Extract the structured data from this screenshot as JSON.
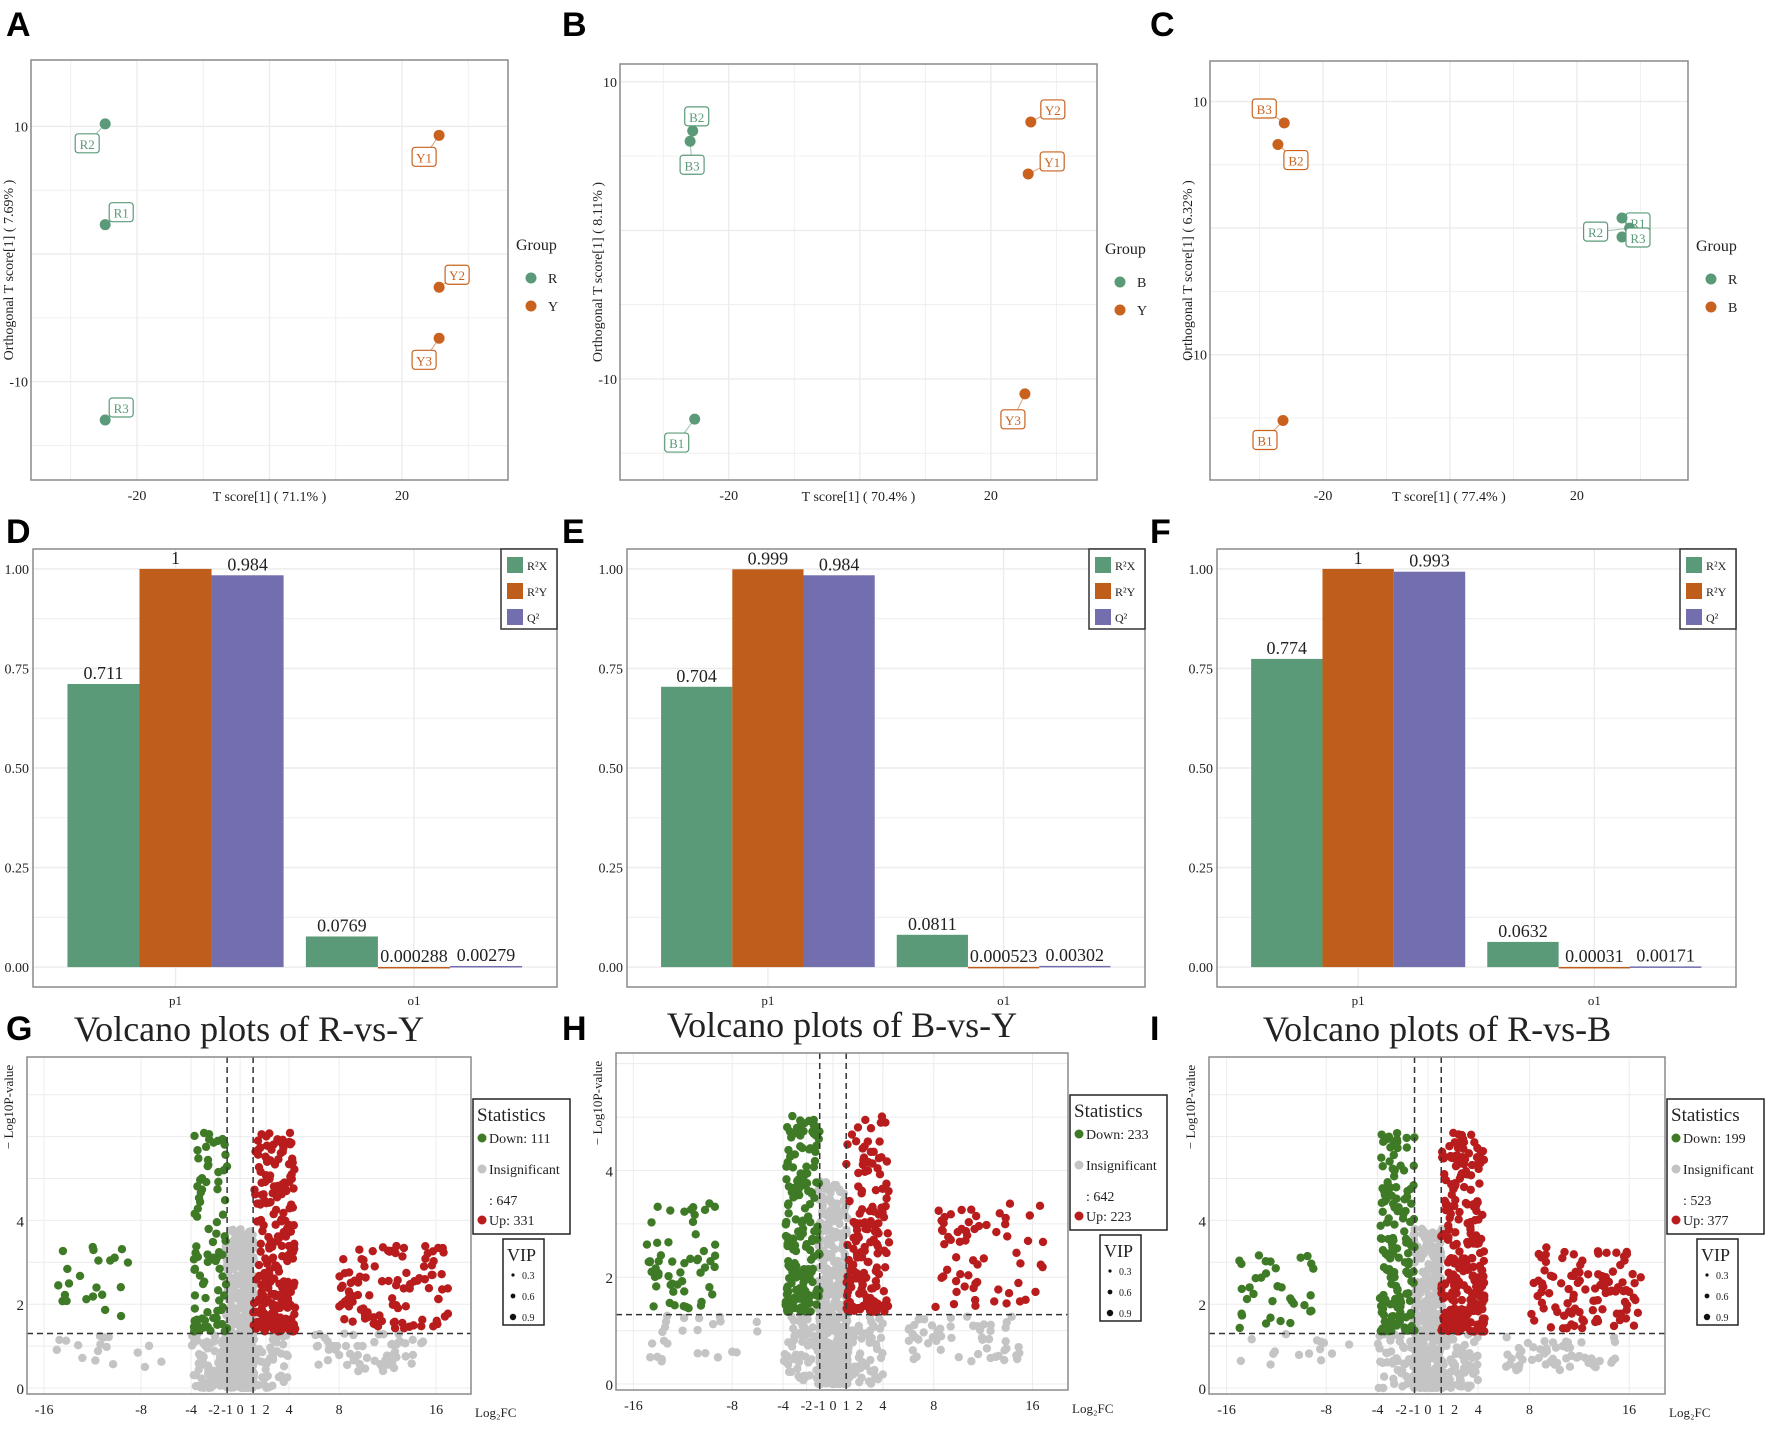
{
  "chart_data": [
    {
      "panel": "A",
      "type": "scatter",
      "xlabel": "T score[1] ( 71.1% )",
      "ylabel": "Orthogonal T score[1] ( 7.69% )",
      "xlim": [
        -36,
        36
      ],
      "ylim": [
        -17.7,
        15.2
      ],
      "xticks": [
        -20,
        20
      ],
      "yticks": [
        10,
        -10
      ],
      "legend_title": "Group",
      "groups": [
        {
          "name": "R",
          "color": "#5a9a78"
        },
        {
          "name": "Y",
          "color": "#c8621e"
        }
      ],
      "points": [
        {
          "label": "R1",
          "group": 0,
          "x": -24.8,
          "y": 2.3
        },
        {
          "label": "R2",
          "group": 0,
          "x": -24.8,
          "y": 10.2
        },
        {
          "label": "R3",
          "group": 0,
          "x": -24.8,
          "y": -13
        },
        {
          "label": "Y1",
          "group": 1,
          "x": 25.6,
          "y": 9.3
        },
        {
          "label": "Y2",
          "group": 1,
          "x": 25.6,
          "y": -2.6
        },
        {
          "label": "Y3",
          "group": 1,
          "x": 25.6,
          "y": -6.6
        }
      ]
    },
    {
      "panel": "B",
      "type": "scatter",
      "xlabel": "T score[1] ( 70.4% )",
      "ylabel": "Orthogonal T score[1] ( 8.11% )",
      "xlim": [
        -36.6,
        36.2
      ],
      "ylim": [
        -16.8,
        11.2
      ],
      "xticks": [
        -20,
        20
      ],
      "yticks": [
        10,
        -10
      ],
      "legend_title": "Group",
      "groups": [
        {
          "name": "B",
          "color": "#5a9a78"
        },
        {
          "name": "Y",
          "color": "#c8621e"
        }
      ],
      "points": [
        {
          "label": "B1",
          "group": 0,
          "x": -25.2,
          "y": -12.7
        },
        {
          "label": "B2",
          "group": 0,
          "x": -25.5,
          "y": 6.7
        },
        {
          "label": "B3",
          "group": 0,
          "x": -25.9,
          "y": 6.0
        },
        {
          "label": "Y1",
          "group": 1,
          "x": 25.7,
          "y": 3.8
        },
        {
          "label": "Y2",
          "group": 1,
          "x": 26.1,
          "y": 7.3
        },
        {
          "label": "Y3",
          "group": 1,
          "x": 25.2,
          "y": -11.0
        }
      ]
    },
    {
      "panel": "C",
      "type": "scatter",
      "xlabel": "T score[1] ( 77.4% )",
      "ylabel": "Orthogonal T score[1] ( 6.32% )",
      "xlim": [
        -37.8,
        37.5
      ],
      "ylim": [
        -19.9,
        13.2
      ],
      "xticks": [
        -20,
        20
      ],
      "yticks": [
        10,
        -10
      ],
      "legend_title": "Group",
      "groups": [
        {
          "name": "R",
          "color": "#5a9a78"
        },
        {
          "name": "B",
          "color": "#c8621e"
        }
      ],
      "points": [
        {
          "label": "B1",
          "group": 1,
          "x": -26.3,
          "y": -15.2
        },
        {
          "label": "B2",
          "group": 1,
          "x": -27.1,
          "y": 6.6
        },
        {
          "label": "B3",
          "group": 1,
          "x": -26.1,
          "y": 8.3
        },
        {
          "label": "R1",
          "group": 0,
          "x": 27.1,
          "y": -0.7
        },
        {
          "label": "R2",
          "group": 0,
          "x": 28.3,
          "y": 0
        },
        {
          "label": "R3",
          "group": 0,
          "x": 27.1,
          "y": 0.8
        }
      ]
    },
    {
      "panel": "D",
      "type": "bar",
      "categories": [
        "p1",
        "o1"
      ],
      "ylim": [
        -0.05,
        1.05
      ],
      "yticks": [
        "0.00",
        "0.25",
        "0.50",
        "0.75",
        "1.00"
      ],
      "series": [
        {
          "name": "R²X",
          "color": "#5a9a78",
          "values": [
            0.711,
            0.0769
          ],
          "labels": [
            "0.711",
            "0.0769"
          ]
        },
        {
          "name": "R²Y",
          "color": "#bf5e1a",
          "values": [
            1,
            0.000288
          ],
          "labels": [
            "1",
            "0.000288"
          ]
        },
        {
          "name": "Q²",
          "color": "#736fae",
          "values": [
            0.984,
            0.00279
          ],
          "labels": [
            "0.984",
            "0.00279"
          ]
        }
      ]
    },
    {
      "panel": "E",
      "type": "bar",
      "categories": [
        "p1",
        "o1"
      ],
      "ylim": [
        -0.05,
        1.05
      ],
      "yticks": [
        "0.00",
        "0.25",
        "0.50",
        "0.75",
        "1.00"
      ],
      "series": [
        {
          "name": "R²X",
          "color": "#5a9a78",
          "values": [
            0.704,
            0.0811
          ],
          "labels": [
            "0.704",
            "0.0811"
          ]
        },
        {
          "name": "R²Y",
          "color": "#bf5e1a",
          "values": [
            0.999,
            0.000523
          ],
          "labels": [
            "0.999",
            "0.000523"
          ]
        },
        {
          "name": "Q²",
          "color": "#736fae",
          "values": [
            0.984,
            0.00302
          ],
          "labels": [
            "0.984",
            "0.00302"
          ]
        }
      ]
    },
    {
      "panel": "F",
      "type": "bar",
      "categories": [
        "p1",
        "o1"
      ],
      "ylim": [
        -0.05,
        1.05
      ],
      "yticks": [
        "0.00",
        "0.25",
        "0.50",
        "0.75",
        "1.00"
      ],
      "series": [
        {
          "name": "R²X",
          "color": "#5a9a78",
          "values": [
            0.774,
            0.0632
          ],
          "labels": [
            "0.774",
            "0.0632"
          ]
        },
        {
          "name": "R²Y",
          "color": "#bf5e1a",
          "values": [
            1,
            0.00031
          ],
          "labels": [
            "1",
            "0.00031"
          ]
        },
        {
          "name": "Q²",
          "color": "#736fae",
          "values": [
            0.993,
            0.00171
          ],
          "labels": [
            "0.993",
            "0.00171"
          ]
        }
      ]
    },
    {
      "panel": "G",
      "type": "scatter",
      "title": "Volcano plots of R-vs-Y",
      "xlabel": "Log₂FC",
      "ylabel": "− Log10P-value",
      "xticks": [
        "-16",
        "-8",
        "-4",
        "-2",
        "-1",
        "0",
        "1",
        "2",
        "4",
        "8",
        "16"
      ],
      "yticks": [
        "0",
        "2",
        "4"
      ],
      "ylim": [
        0,
        7.9
      ],
      "thresholds": {
        "log2fc": [
          -1,
          1
        ],
        "neg_log10_p": 1.3
      },
      "stats_title": "Statistics",
      "down_label": "Down: 111",
      "insig_label": "Insignificant",
      "insig_count": ": 647",
      "up_label": "Up: 331",
      "counts": {
        "down": 111,
        "insignificant": 647,
        "up": 331
      },
      "vip_title": "VIP",
      "vip_levels": [
        "0.3",
        "0.6",
        "0.9"
      ]
    },
    {
      "panel": "H",
      "type": "scatter",
      "title": "Volcano plots of B-vs-Y",
      "xlabel": "Log₂FC",
      "ylabel": "− Log10P-value",
      "xticks": [
        "-16",
        "-8",
        "-4",
        "-2",
        "-1",
        "0",
        "1",
        "2",
        "4",
        "8",
        "16"
      ],
      "yticks": [
        "0",
        "2",
        "4"
      ],
      "ylim": [
        0,
        6.2
      ],
      "thresholds": {
        "log2fc": [
          -1,
          1
        ],
        "neg_log10_p": 1.3
      },
      "stats_title": "Statistics",
      "down_label": "Down: 233",
      "insig_label": "Insignificant",
      "insig_count": ": 642",
      "up_label": "Up: 223",
      "counts": {
        "down": 233,
        "insignificant": 642,
        "up": 223
      },
      "vip_title": "VIP",
      "vip_levels": [
        "0.3",
        "0.6",
        "0.9"
      ]
    },
    {
      "panel": "I",
      "type": "scatter",
      "title": "Volcano plots of R-vs-B",
      "xlabel": "Log₂FC",
      "ylabel": "− Log10P-value",
      "xticks": [
        "-16",
        "-8",
        "-4",
        "-2",
        "-1",
        "0",
        "1",
        "2",
        "4",
        "8",
        "16"
      ],
      "yticks": [
        "0",
        "2",
        "4"
      ],
      "ylim": [
        0,
        7.9
      ],
      "thresholds": {
        "log2fc": [
          -1,
          1
        ],
        "neg_log10_p": 1.3
      },
      "stats_title": "Statistics",
      "down_label": "Down: 199",
      "insig_label": "Insignificant",
      "insig_count": ": 523",
      "up_label": "Up: 377",
      "counts": {
        "down": 199,
        "insignificant": 523,
        "up": 377
      },
      "vip_title": "VIP",
      "vip_levels": [
        "0.3",
        "0.6",
        "0.9"
      ]
    }
  ],
  "colors": {
    "down": "#3f7a26",
    "insignificant": "#c4c4c4",
    "up": "#b81c1c",
    "grid": "#ececec",
    "frame": "#8a8a8a"
  }
}
